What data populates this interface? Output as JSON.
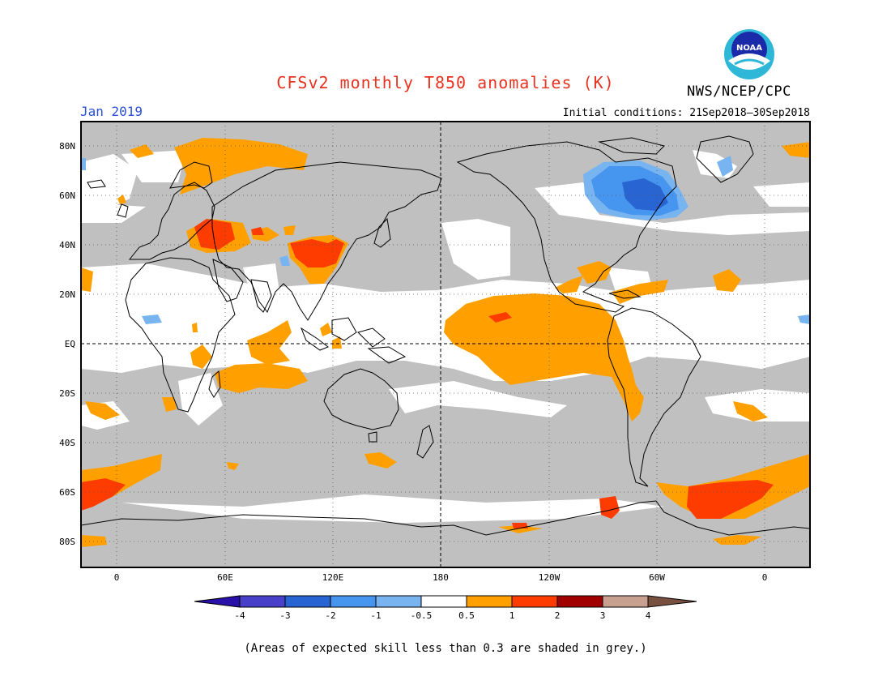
{
  "title": "CFSv2 monthly T850 anomalies (K)",
  "month_label": "Jan 2019",
  "initial_conditions": "Initial conditions: 21Sep2018–30Sep2018",
  "agency": "NWS/NCEP/CPC",
  "logo_text": "NOAA",
  "footnote": "(Areas of expected skill less than 0.3 are shaded in grey.)",
  "colors": {
    "grey_low_skill": "#c0c0c0",
    "neutral": "#ffffff",
    "pos_0_5_to_1": "#ffa000",
    "pos_1_to_2": "#ff3c00",
    "pos_2_to_3": "#a00000",
    "pos_3_to_4": "#c8a090",
    "pos_gt_4": "#785040",
    "neg_0_5_to_1": "#78b4f0",
    "neg_1_to_2": "#4696f0",
    "neg_2_to_3": "#2864d2",
    "neg_3_to_4": "#4840c8",
    "neg_lt_4": "#2010a0"
  },
  "map": {
    "lat_labels": [
      "80N",
      "60N",
      "40N",
      "20N",
      "EQ",
      "20S",
      "40S",
      "60S",
      "80S"
    ],
    "lon_labels": [
      "0",
      "60E",
      "120E",
      "180",
      "120W",
      "60W",
      "0"
    ],
    "lat_values": [
      80,
      60,
      40,
      20,
      0,
      -20,
      -40,
      -60,
      -80
    ],
    "lon_values": [
      0,
      60,
      120,
      180,
      240,
      300,
      360
    ]
  },
  "colorbar": {
    "tick_labels": [
      "-4",
      "-3",
      "-2",
      "-1",
      "-0.5",
      "0.5",
      "1",
      "2",
      "3",
      "4"
    ],
    "colors": [
      "#2810a8",
      "#4840c8",
      "#2864d2",
      "#4696f0",
      "#78b4f0",
      "#ffffff",
      "#ffa000",
      "#ff3c00",
      "#a00000",
      "#c8a090",
      "#785040"
    ]
  }
}
